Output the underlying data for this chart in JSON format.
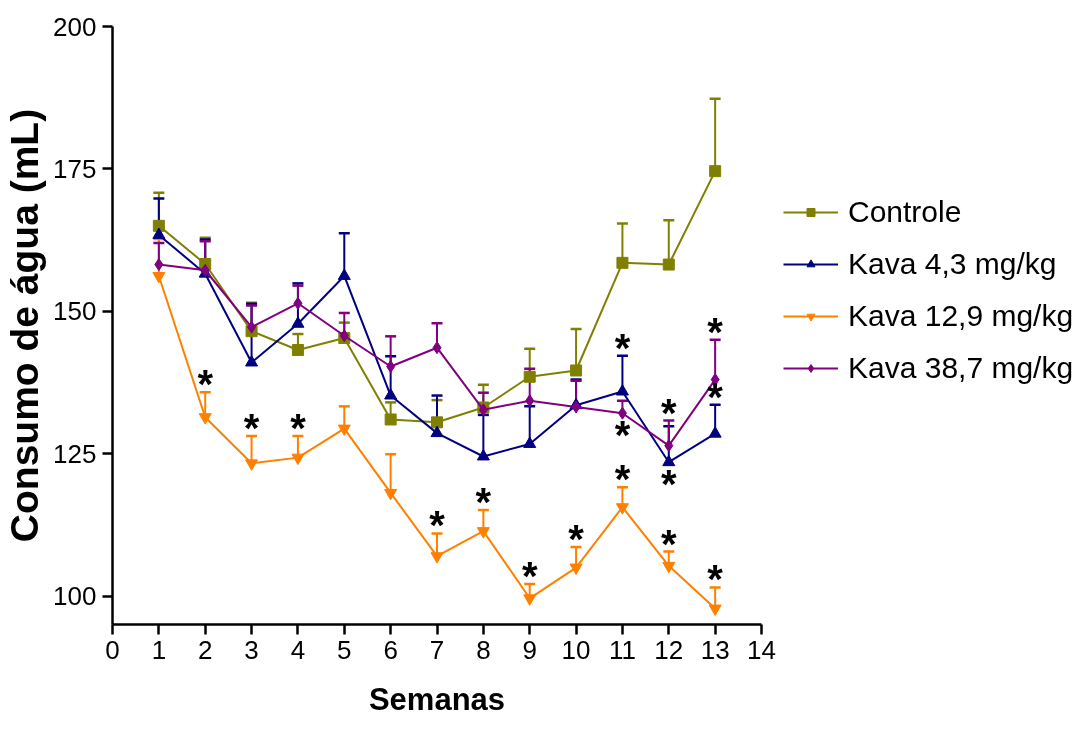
{
  "chart_data": {
    "type": "line",
    "xlabel": "Semanas",
    "ylabel": "Consumo de água (mL)",
    "x": [
      1,
      2,
      3,
      4,
      5,
      6,
      7,
      8,
      9,
      10,
      11,
      12,
      13
    ],
    "xlim": [
      0,
      14
    ],
    "xticks": [
      0,
      1,
      2,
      3,
      4,
      5,
      6,
      7,
      8,
      9,
      10,
      11,
      12,
      13,
      14
    ],
    "ylim": [
      95,
      200
    ],
    "yticks": [
      100,
      125,
      150,
      175,
      200
    ],
    "grid": false,
    "legend": "right",
    "line_style": "solid",
    "series": [
      {
        "name": "Controle",
        "color": "#808000",
        "marker": "square",
        "values": [
          165,
          158.3,
          146.5,
          143.2,
          145.3,
          131,
          130.5,
          133.1,
          138.5,
          139.6,
          158.5,
          158.2,
          174.6
        ],
        "errors": [
          [
            165,
            170.8
          ],
          [
            158.3,
            162.9
          ],
          [
            146.5,
            151.5
          ],
          [
            143.2,
            146
          ],
          [
            145.3,
            148
          ],
          [
            131,
            134
          ],
          [
            130.5,
            134.4
          ],
          [
            133.1,
            137.1
          ],
          [
            138.5,
            143.4
          ],
          [
            139.6,
            146.9
          ],
          [
            158.5,
            165.4
          ],
          [
            158.2,
            166
          ],
          [
            174.6,
            187.3
          ]
        ]
      },
      {
        "name": "Kava 4,3 mg/kg",
        "color": "#000080",
        "marker": "triangle",
        "values": [
          163.4,
          156.6,
          141,
          147.8,
          156.2,
          135.2,
          128.6,
          124.5,
          126.7,
          133.5,
          135.9,
          123.5,
          128.5
        ],
        "errors": [
          [
            163.4,
            169.8
          ],
          [
            156.6,
            162.6
          ],
          [
            141,
            151.3
          ],
          [
            147.8,
            154.9
          ],
          [
            156.2,
            163.7
          ],
          [
            135.2,
            142.1
          ],
          [
            128.6,
            135.2
          ],
          [
            124.5,
            131.8
          ],
          [
            126.7,
            133.3
          ],
          [
            133.5,
            138
          ],
          [
            135.9,
            142.2
          ],
          [
            123.5,
            129.8
          ],
          [
            128.5,
            133.6
          ]
        ]
      },
      {
        "name": "Kava 12,9 mg/kg",
        "color": "#ff8000",
        "marker": "triangle_down",
        "values": [
          156.2,
          131.4,
          123.3,
          124.3,
          129.4,
          118.1,
          107,
          111.4,
          99.6,
          105,
          115.6,
          105.3,
          97.8
        ],
        "errors": [
          [
            156.2,
            162.7
          ],
          [
            131.4,
            135.8
          ],
          [
            123.3,
            128.1
          ],
          [
            124.3,
            128.1
          ],
          [
            129.4,
            133.3
          ],
          [
            118.1,
            124.9
          ],
          [
            107,
            111
          ],
          [
            111.4,
            115.1
          ],
          [
            99.6,
            102.1
          ],
          [
            105,
            108.6
          ],
          [
            115.6,
            119.1
          ],
          [
            105.3,
            107.8
          ],
          [
            97.8,
            101.5
          ]
        ]
      },
      {
        "name": "Kava 38,7 mg/kg",
        "color": "#800080",
        "marker": "diamond",
        "values": [
          158.2,
          157.2,
          147.2,
          151.4,
          145.7,
          140.3,
          143.6,
          132.7,
          134.3,
          133.2,
          132.1,
          126.4,
          138
        ],
        "errors": [
          [
            158.2,
            162
          ],
          [
            157.2,
            162.3
          ],
          [
            147.2,
            151
          ],
          [
            151.4,
            154.5
          ],
          [
            145.7,
            149.7
          ],
          [
            140.3,
            145.6
          ],
          [
            143.6,
            147.9
          ],
          [
            132.7,
            135.7
          ],
          [
            134.3,
            139.9
          ],
          [
            133.2,
            137.8
          ],
          [
            132.1,
            134.3
          ],
          [
            126.4,
            130.8
          ],
          [
            138,
            145
          ]
        ]
      }
    ],
    "annotations": [
      {
        "text": "*",
        "x": 2,
        "y": 135.8
      },
      {
        "text": "*",
        "x": 3,
        "y": 128.1
      },
      {
        "text": "*",
        "x": 4,
        "y": 128.1
      },
      {
        "text": "*",
        "x": 7,
        "y": 111
      },
      {
        "text": "*",
        "x": 8,
        "y": 115.1
      },
      {
        "text": "*",
        "x": 9,
        "y": 102.1
      },
      {
        "text": "*",
        "x": 10,
        "y": 108.6
      },
      {
        "text": "*",
        "x": 11,
        "y": 119.1
      },
      {
        "text": "*",
        "x": 12,
        "y": 107.8
      },
      {
        "text": "*",
        "x": 13,
        "y": 101.5
      },
      {
        "text": "*",
        "x": 11,
        "y": 142.2
      },
      {
        "text": "*",
        "x": 11,
        "y": 132.1
      },
      {
        "text": "*",
        "x": 12,
        "y": 130.8
      },
      {
        "text": "*",
        "x": 12,
        "y": 123.5
      },
      {
        "text": "*",
        "x": 13,
        "y": 145
      },
      {
        "text": "*",
        "x": 13,
        "y": 133.6
      }
    ]
  }
}
